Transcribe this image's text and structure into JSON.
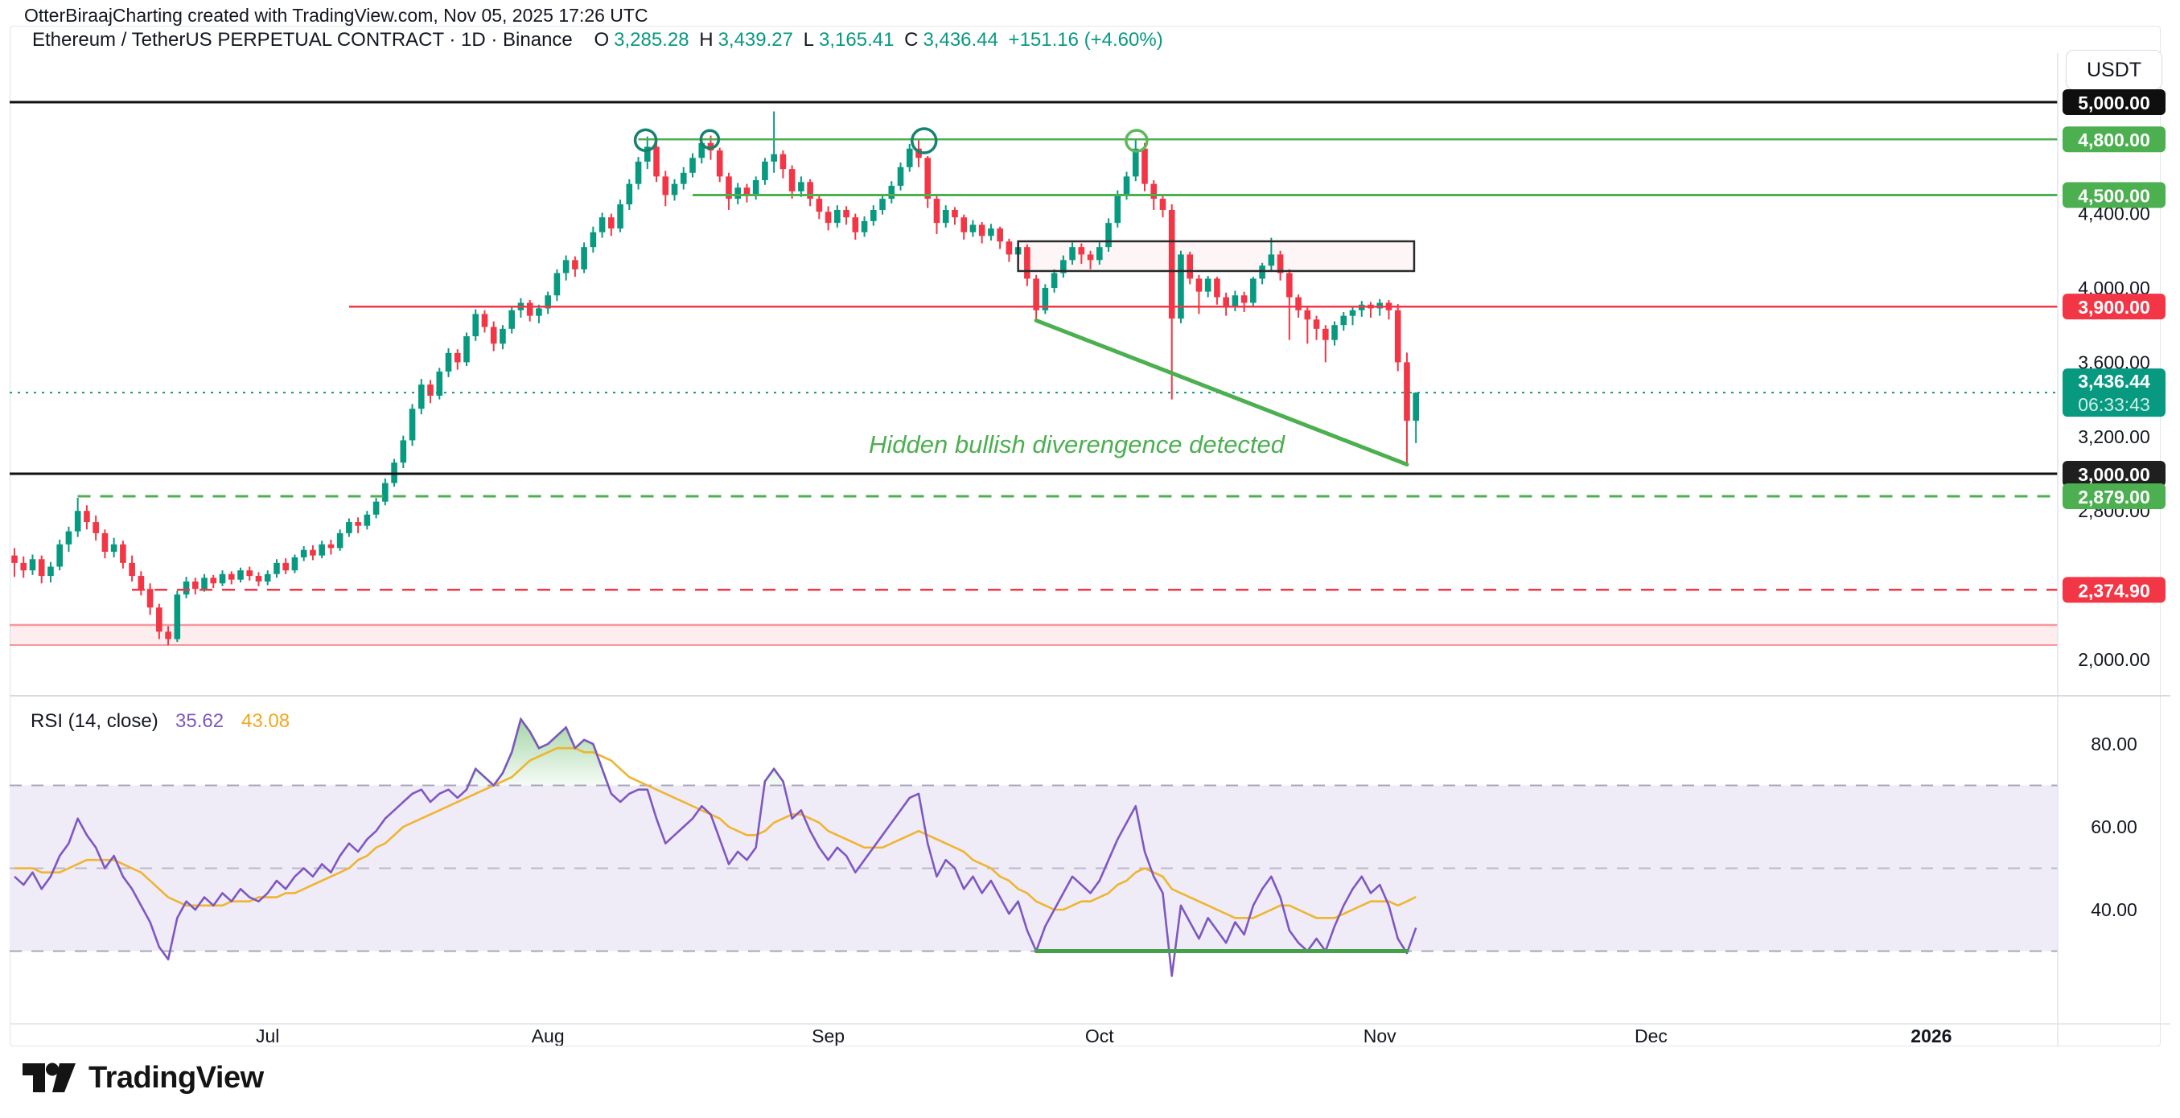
{
  "attribution": {
    "text": "OtterBiraajCharting created with TradingView.com, Nov 05, 2025 17:26 UTC"
  },
  "header": {
    "symbol": "Ethereum / TetherUS PERPETUAL CONTRACT · 1D · Binance",
    "o_label": "O",
    "o": "3,285.28",
    "h_label": "H",
    "h": "3,439.27",
    "l_label": "L",
    "l": "3,165.41",
    "c_label": "C",
    "c": "3,436.44",
    "change": "+151.16 (+4.60%)"
  },
  "currency_button": {
    "label": "USDT"
  },
  "footer": {
    "brand": "TradingView"
  },
  "rsi_pane": {
    "title": "RSI (14, close)",
    "value": "35.62",
    "ma_value": "43.08",
    "value_color": "#7e57c2",
    "ma_color": "#f0a81c",
    "scale_labels": [
      {
        "r": 80,
        "label": "80.00"
      },
      {
        "r": 60,
        "label": "60.00"
      },
      {
        "r": 40,
        "label": "40.00"
      }
    ]
  },
  "colors": {
    "up": "#089981",
    "down": "#f23645",
    "level_green": "#4caf50",
    "level_red": "#f23645",
    "level_black": "#111111",
    "current": "#089981",
    "rsi_line": "#7e57c2",
    "rsi_ma": "#f0b42f",
    "band_fill": "#efecf8",
    "band_edge": "#a9a6bb",
    "band_mid": "#bcb9ca",
    "divergence_green": "#4caf50"
  },
  "chart_data": {
    "type": "candlestick_with_rsi",
    "title": "Ethereum / TetherUS PERPETUAL CONTRACT 1D Binance",
    "price_axis": {
      "visible_min": 1805,
      "visible_max": 5264
    },
    "rsi_axis": {
      "visible_min": 12,
      "visible_max": 92,
      "band": [
        30,
        70
      ],
      "mid": 50
    },
    "months": [
      {
        "label": "Jul",
        "day": 28,
        "bold": false
      },
      {
        "label": "Aug",
        "day": 59,
        "bold": false
      },
      {
        "label": "Sep",
        "day": 90,
        "bold": false
      },
      {
        "label": "Oct",
        "day": 120,
        "bold": false
      },
      {
        "label": "Nov",
        "day": 151,
        "bold": false
      },
      {
        "label": "Dec",
        "day": 181,
        "bold": false
      },
      {
        "label": "2026",
        "day": 212,
        "bold": true
      }
    ],
    "candles": [
      [
        2560,
        2600,
        2445,
        2520
      ],
      [
        2520,
        2555,
        2440,
        2480
      ],
      [
        2480,
        2565,
        2455,
        2540
      ],
      [
        2540,
        2560,
        2410,
        2450
      ],
      [
        2450,
        2525,
        2415,
        2500
      ],
      [
        2500,
        2645,
        2480,
        2620
      ],
      [
        2620,
        2715,
        2580,
        2690
      ],
      [
        2690,
        2870,
        2660,
        2800
      ],
      [
        2800,
        2830,
        2700,
        2740
      ],
      [
        2740,
        2775,
        2640,
        2680
      ],
      [
        2680,
        2700,
        2545,
        2580
      ],
      [
        2580,
        2655,
        2550,
        2620
      ],
      [
        2620,
        2640,
        2490,
        2520
      ],
      [
        2520,
        2560,
        2420,
        2450
      ],
      [
        2450,
        2475,
        2345,
        2380
      ],
      [
        2380,
        2410,
        2240,
        2280
      ],
      [
        2280,
        2300,
        2110,
        2150
      ],
      [
        2150,
        2180,
        2077,
        2110
      ],
      [
        2110,
        2370,
        2095,
        2350
      ],
      [
        2350,
        2445,
        2330,
        2420
      ],
      [
        2420,
        2440,
        2350,
        2380
      ],
      [
        2380,
        2460,
        2365,
        2440
      ],
      [
        2440,
        2455,
        2385,
        2410
      ],
      [
        2410,
        2480,
        2395,
        2460
      ],
      [
        2460,
        2475,
        2405,
        2430
      ],
      [
        2430,
        2495,
        2415,
        2480
      ],
      [
        2480,
        2500,
        2425,
        2450
      ],
      [
        2450,
        2470,
        2395,
        2420
      ],
      [
        2420,
        2480,
        2400,
        2460
      ],
      [
        2460,
        2540,
        2440,
        2520
      ],
      [
        2520,
        2545,
        2460,
        2480
      ],
      [
        2480,
        2565,
        2465,
        2550
      ],
      [
        2550,
        2610,
        2530,
        2590
      ],
      [
        2590,
        2615,
        2535,
        2560
      ],
      [
        2560,
        2640,
        2545,
        2620
      ],
      [
        2620,
        2645,
        2565,
        2600
      ],
      [
        2600,
        2700,
        2585,
        2680
      ],
      [
        2680,
        2760,
        2660,
        2740
      ],
      [
        2740,
        2765,
        2680,
        2720
      ],
      [
        2720,
        2800,
        2700,
        2780
      ],
      [
        2780,
        2870,
        2760,
        2850
      ],
      [
        2850,
        2975,
        2830,
        2950
      ],
      [
        2950,
        3080,
        2930,
        3060
      ],
      [
        3060,
        3205,
        3030,
        3180
      ],
      [
        3180,
        3375,
        3150,
        3350
      ],
      [
        3350,
        3510,
        3320,
        3480
      ],
      [
        3480,
        3505,
        3380,
        3420
      ],
      [
        3420,
        3570,
        3400,
        3550
      ],
      [
        3550,
        3675,
        3520,
        3650
      ],
      [
        3650,
        3670,
        3560,
        3600
      ],
      [
        3600,
        3760,
        3580,
        3740
      ],
      [
        3740,
        3885,
        3715,
        3860
      ],
      [
        3860,
        3880,
        3760,
        3790
      ],
      [
        3790,
        3820,
        3660,
        3700
      ],
      [
        3700,
        3800,
        3670,
        3780
      ],
      [
        3780,
        3900,
        3755,
        3880
      ],
      [
        3880,
        3945,
        3840,
        3920
      ],
      [
        3920,
        3935,
        3820,
        3850
      ],
      [
        3850,
        3910,
        3810,
        3890
      ],
      [
        3890,
        3980,
        3860,
        3960
      ],
      [
        3960,
        4100,
        3930,
        4080
      ],
      [
        4080,
        4175,
        4040,
        4150
      ],
      [
        4150,
        4170,
        4060,
        4100
      ],
      [
        4100,
        4245,
        4080,
        4220
      ],
      [
        4220,
        4330,
        4190,
        4300
      ],
      [
        4300,
        4405,
        4270,
        4380
      ],
      [
        4380,
        4400,
        4280,
        4320
      ],
      [
        4320,
        4475,
        4300,
        4450
      ],
      [
        4450,
        4585,
        4420,
        4560
      ],
      [
        4560,
        4705,
        4530,
        4680
      ],
      [
        4680,
        4815,
        4640,
        4760
      ],
      [
        4760,
        4790,
        4570,
        4600
      ],
      [
        4600,
        4630,
        4440,
        4500
      ],
      [
        4500,
        4585,
        4470,
        4560
      ],
      [
        4560,
        4650,
        4530,
        4620
      ],
      [
        4620,
        4725,
        4595,
        4700
      ],
      [
        4700,
        4800,
        4670,
        4780
      ],
      [
        4780,
        4820,
        4690,
        4740
      ],
      [
        4740,
        4755,
        4570,
        4600
      ],
      [
        4600,
        4620,
        4420,
        4480
      ],
      [
        4480,
        4565,
        4450,
        4540
      ],
      [
        4540,
        4560,
        4460,
        4500
      ],
      [
        4500,
        4600,
        4475,
        4580
      ],
      [
        4580,
        4700,
        4555,
        4680
      ],
      [
        4680,
        4950,
        4620,
        4720
      ],
      [
        4720,
        4740,
        4590,
        4640
      ],
      [
        4640,
        4660,
        4480,
        4520
      ],
      [
        4520,
        4600,
        4490,
        4570
      ],
      [
        4570,
        4585,
        4440,
        4480
      ],
      [
        4480,
        4505,
        4370,
        4410
      ],
      [
        4410,
        4440,
        4310,
        4350
      ],
      [
        4350,
        4445,
        4325,
        4420
      ],
      [
        4420,
        4440,
        4340,
        4380
      ],
      [
        4380,
        4400,
        4260,
        4300
      ],
      [
        4300,
        4385,
        4275,
        4360
      ],
      [
        4360,
        4445,
        4335,
        4420
      ],
      [
        4420,
        4505,
        4395,
        4480
      ],
      [
        4480,
        4575,
        4455,
        4550
      ],
      [
        4550,
        4675,
        4525,
        4650
      ],
      [
        4650,
        4775,
        4625,
        4750
      ],
      [
        4750,
        4805,
        4650,
        4700
      ],
      [
        4700,
        4710,
        4430,
        4480
      ],
      [
        4480,
        4500,
        4290,
        4350
      ],
      [
        4350,
        4445,
        4325,
        4420
      ],
      [
        4420,
        4435,
        4340,
        4380
      ],
      [
        4380,
        4395,
        4260,
        4300
      ],
      [
        4300,
        4365,
        4275,
        4340
      ],
      [
        4340,
        4355,
        4240,
        4280
      ],
      [
        4280,
        4345,
        4255,
        4320
      ],
      [
        4320,
        4330,
        4210,
        4250
      ],
      [
        4250,
        4265,
        4140,
        4180
      ],
      [
        4180,
        4245,
        4155,
        4220
      ],
      [
        4220,
        4235,
        4010,
        4050
      ],
      [
        4050,
        4070,
        3830,
        3880
      ],
      [
        3880,
        4020,
        3860,
        4000
      ],
      [
        4000,
        4100,
        3975,
        4080
      ],
      [
        4080,
        4175,
        4055,
        4150
      ],
      [
        4150,
        4245,
        4125,
        4220
      ],
      [
        4220,
        4240,
        4130,
        4180
      ],
      [
        4180,
        4200,
        4100,
        4150
      ],
      [
        4150,
        4245,
        4125,
        4220
      ],
      [
        4220,
        4375,
        4195,
        4350
      ],
      [
        4350,
        4525,
        4325,
        4500
      ],
      [
        4500,
        4625,
        4475,
        4600
      ],
      [
        4600,
        4800,
        4575,
        4750
      ],
      [
        4750,
        4780,
        4520,
        4560
      ],
      [
        4560,
        4580,
        4420,
        4480
      ],
      [
        4480,
        4500,
        4380,
        4420
      ],
      [
        4420,
        4450,
        3400,
        3835
      ],
      [
        3835,
        4200,
        3810,
        4180
      ],
      [
        4180,
        4195,
        4020,
        4050
      ],
      [
        4050,
        4070,
        3860,
        3980
      ],
      [
        3980,
        4065,
        3950,
        4050
      ],
      [
        4050,
        4060,
        3910,
        3950
      ],
      [
        3950,
        3975,
        3850,
        3900
      ],
      [
        3900,
        3985,
        3875,
        3960
      ],
      [
        3960,
        3980,
        3870,
        3920
      ],
      [
        3920,
        4060,
        3900,
        4050
      ],
      [
        4050,
        4135,
        4020,
        4120
      ],
      [
        4120,
        4270,
        4090,
        4180
      ],
      [
        4180,
        4200,
        4040,
        4080
      ],
      [
        4080,
        4100,
        3720,
        3950
      ],
      [
        3950,
        3965,
        3840,
        3880
      ],
      [
        3880,
        3900,
        3700,
        3830
      ],
      [
        3830,
        3850,
        3720,
        3780
      ],
      [
        3780,
        3800,
        3600,
        3720
      ],
      [
        3720,
        3820,
        3690,
        3800
      ],
      [
        3800,
        3870,
        3770,
        3850
      ],
      [
        3850,
        3895,
        3800,
        3880
      ],
      [
        3880,
        3930,
        3845,
        3910
      ],
      [
        3910,
        3925,
        3840,
        3890
      ],
      [
        3890,
        3940,
        3850,
        3920
      ],
      [
        3920,
        3935,
        3830,
        3880
      ],
      [
        3880,
        3913,
        3552,
        3600
      ],
      [
        3600,
        3652,
        3052,
        3285
      ],
      [
        3285,
        3439,
        3165,
        3436
      ]
    ],
    "rsi": [
      48,
      46,
      49,
      45,
      48,
      53,
      56,
      62,
      58,
      55,
      50,
      53,
      48,
      45,
      41,
      37,
      31,
      28,
      38,
      42,
      40,
      43,
      41,
      44,
      42,
      45,
      43,
      42,
      44,
      47,
      45,
      48,
      50,
      48,
      51,
      49,
      53,
      56,
      54,
      57,
      59,
      62,
      64,
      66,
      68,
      69,
      66,
      68,
      69,
      67,
      69,
      74,
      72,
      70,
      73,
      78,
      86,
      83,
      79,
      80,
      82,
      84,
      79,
      81,
      80,
      74,
      68,
      66,
      68,
      69,
      69,
      62,
      56,
      58,
      60,
      62,
      65,
      63,
      57,
      51,
      54,
      52,
      55,
      71,
      74,
      71,
      62,
      64,
      59,
      55,
      52,
      55,
      53,
      49,
      52,
      55,
      58,
      61,
      64,
      67,
      68,
      56,
      48,
      52,
      50,
      45,
      48,
      44,
      47,
      43,
      39,
      42,
      35,
      30,
      36,
      40,
      44,
      48,
      46,
      44,
      47,
      52,
      57,
      61,
      65,
      54,
      48,
      44,
      24,
      41,
      37,
      33,
      38,
      35,
      32,
      37,
      34,
      41,
      45,
      48,
      43,
      35,
      32,
      30,
      33,
      30,
      36,
      41,
      45,
      48,
      44,
      46,
      41,
      33,
      29.5,
      35.62
    ],
    "rsi_ma": [
      50,
      50,
      50,
      49,
      49,
      49,
      50,
      51,
      52,
      52,
      52,
      52,
      51,
      50,
      49,
      47,
      45,
      43,
      42,
      41,
      41,
      41,
      41,
      41,
      42,
      42,
      42,
      43,
      43,
      43,
      44,
      44,
      45,
      46,
      47,
      48,
      49,
      50,
      52,
      53,
      55,
      56,
      58,
      60,
      61,
      62,
      63,
      64,
      65,
      66,
      67,
      68,
      69,
      70,
      71,
      72,
      74,
      76,
      77,
      78,
      79,
      79,
      79,
      78,
      78,
      77,
      76,
      74,
      72,
      71,
      70,
      69,
      68,
      67,
      66,
      65,
      64,
      63,
      62,
      60,
      59,
      58,
      58,
      59,
      61,
      62,
      63,
      63,
      62,
      61,
      59,
      58,
      57,
      56,
      55,
      55,
      55,
      56,
      57,
      58,
      59,
      58,
      57,
      56,
      55,
      54,
      52,
      51,
      50,
      48,
      47,
      45,
      44,
      42,
      41,
      40,
      40,
      41,
      42,
      42,
      43,
      44,
      46,
      47,
      49,
      50,
      49,
      48,
      45,
      44,
      43,
      42,
      41,
      40,
      39,
      38,
      38,
      38,
      39,
      40,
      41,
      41,
      40,
      39,
      38,
      38,
      38,
      39,
      40,
      41,
      42,
      42,
      42,
      41,
      42,
      43.08
    ],
    "rsi_overbought_threshold": 70,
    "levels": [
      {
        "price": 5000,
        "label": "5,000.00",
        "line": "solid",
        "line_color": "#111111",
        "badge_bg": "#0f0f0f",
        "from_day": 0
      },
      {
        "price": 4800,
        "label": "4,800.00",
        "line": "solid",
        "line_color": "#4caf50",
        "badge_bg": "#4caf50",
        "from_day": 69
      },
      {
        "price": 4500,
        "label": "4,500.00",
        "line": "solid",
        "line_color": "#4caf50",
        "badge_bg": "#4caf50",
        "from_day": 75
      },
      {
        "price": 4400,
        "label": "4,400.00",
        "line": "none"
      },
      {
        "price": 4000,
        "label": "4,000.00",
        "line": "none"
      },
      {
        "price": 3900,
        "label": "3,900.00",
        "line": "solid",
        "line_color": "#f23645",
        "badge_bg": "#f23645",
        "from_day": 37
      },
      {
        "price": 3600,
        "label": "3,600.00",
        "line": "none"
      },
      {
        "price": 3200,
        "label": "3,200.00",
        "line": "none"
      },
      {
        "price": 3000,
        "label": "3,000.00",
        "line": "solid",
        "line_color": "#111111",
        "badge_bg": "#1f1f1f",
        "from_day": 0
      },
      {
        "price": 2800,
        "label": "2,800.00",
        "line": "none"
      },
      {
        "price": 2879,
        "label": "2,879.00",
        "line": "dashed",
        "line_color": "#4caf50",
        "badge_bg": "#4caf50",
        "from_day": 7
      },
      {
        "price": 2374.9,
        "label": "2,374.90",
        "line": "dashed",
        "line_color": "#f23645",
        "badge_bg": "#f23645",
        "from_day": 13
      },
      {
        "price": 2000,
        "label": "2,000.00",
        "line": "none"
      }
    ],
    "current_price": {
      "price": 3436.44,
      "label": "3,436.44",
      "countdown": "06:33:43",
      "color": "#089981"
    },
    "zones": [
      {
        "type": "band",
        "price_top": 2186,
        "price_bottom": 2078,
        "fill": "rgba(242,54,69,0.09)",
        "border": "rgba(242,54,69,0.5)"
      },
      {
        "type": "rect",
        "day_from": 111,
        "day_to": 154.8,
        "price_top": 4251,
        "price_bottom": 4091,
        "fill": "rgba(242,54,69,0.05)",
        "border": "#2a2a2a"
      }
    ],
    "circles": [
      {
        "day": 69.8,
        "price": 4795,
        "r": 13,
        "color": "#16836f"
      },
      {
        "day": 76.9,
        "price": 4800,
        "r": 11,
        "color": "#16836f"
      },
      {
        "day": 100.6,
        "price": 4792,
        "r": 15,
        "color": "#16836f"
      },
      {
        "day": 124.1,
        "price": 4792,
        "r": 13,
        "color": "#5cb85c"
      }
    ],
    "trendline": {
      "from_day": 113,
      "from_price": 3825,
      "to_day": 154,
      "to_price": 3050,
      "color": "#4caf50",
      "width": 5
    },
    "annotation": {
      "text": "Hidden bullish diverengence detected",
      "day": 94.5,
      "price": 3150
    },
    "rsi_divergence_segment": {
      "from_day": 113,
      "to_day": 154,
      "level": 30,
      "color": "#45a049",
      "width": 5
    }
  }
}
